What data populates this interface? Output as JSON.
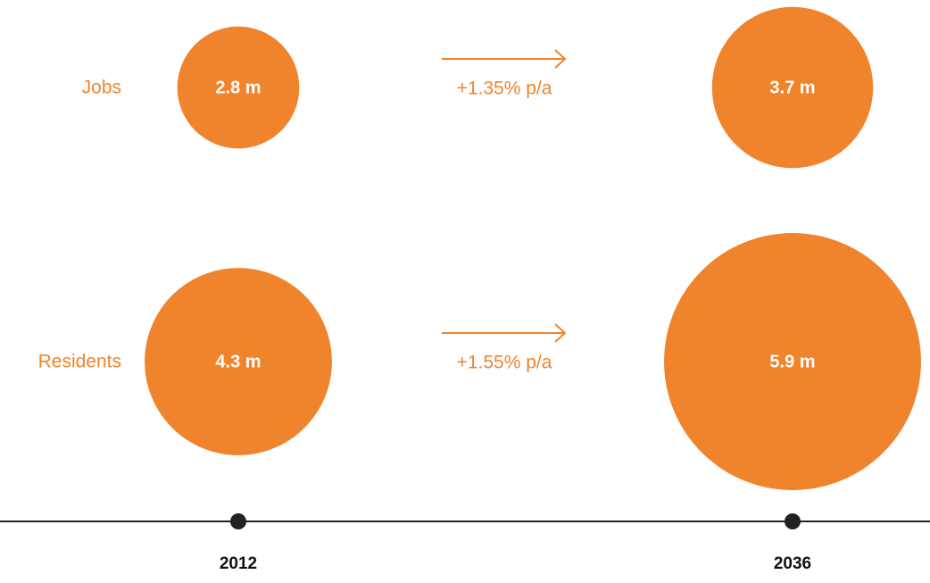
{
  "chart_data": {
    "type": "bubble",
    "categories": [
      "2012",
      "2036"
    ],
    "series": [
      {
        "name": "Jobs",
        "color": "#f0842c",
        "values": [
          2.8,
          3.7
        ],
        "value_labels": [
          "2.8 m",
          "3.7 m"
        ],
        "growth": "+1.35% p/a"
      },
      {
        "name": "Residents",
        "color": "#f0842c",
        "values": [
          4.3,
          5.9
        ],
        "value_labels": [
          "4.3 m",
          "5.9 m"
        ],
        "growth": "+1.55% p/a"
      }
    ]
  }
}
